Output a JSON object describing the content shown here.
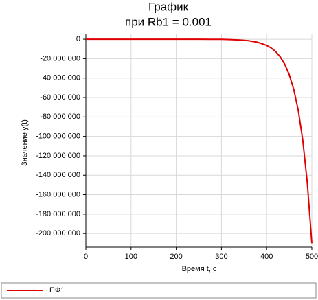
{
  "chart_data": {
    "type": "line",
    "title": "График",
    "subtitle": "при Rb1 = 0.001",
    "x_label": "Время t, c",
    "y_label": "Значение y(t)",
    "x": [
      0,
      50,
      100,
      150,
      200,
      250,
      280,
      300,
      320,
      340,
      360,
      380,
      400,
      410,
      420,
      430,
      440,
      450,
      460,
      470,
      480,
      490,
      500
    ],
    "series": [
      {
        "name": "ПФ1",
        "color": "#e00000",
        "values": [
          0,
          0,
          0,
          0,
          0,
          -10000,
          -95000,
          -191000,
          -386000,
          -776000,
          -1560000,
          -3150000,
          -6340000,
          -9000000,
          -12800000,
          -18100000,
          -25700000,
          -36500000,
          -51800000,
          -73500000,
          -104000000,
          -148000000,
          -210000000
        ]
      }
    ],
    "xlim": [
      0,
      500
    ],
    "ylim": [
      -214000000,
      5000000
    ],
    "xticks": [
      0,
      100,
      200,
      300,
      400,
      500
    ],
    "yticks": [
      0,
      {
        "value": -20000000,
        "label": "-20 000 000"
      },
      {
        "value": -40000000,
        "label": "-40 000 000"
      },
      {
        "value": -60000000,
        "label": "-60 000 000"
      },
      {
        "value": -80000000,
        "label": "-80 000 000"
      },
      {
        "value": -100000000,
        "label": "-100 000 000"
      },
      {
        "value": -120000000,
        "label": "-120 000 000"
      },
      {
        "value": -140000000,
        "label": "-140 000 000"
      },
      {
        "value": -160000000,
        "label": "-160 000 000"
      },
      {
        "value": -180000000,
        "label": "-180 000 000"
      },
      {
        "value": -200000000,
        "label": "-200 000 000"
      }
    ],
    "grid": true,
    "legend": "bottom"
  }
}
